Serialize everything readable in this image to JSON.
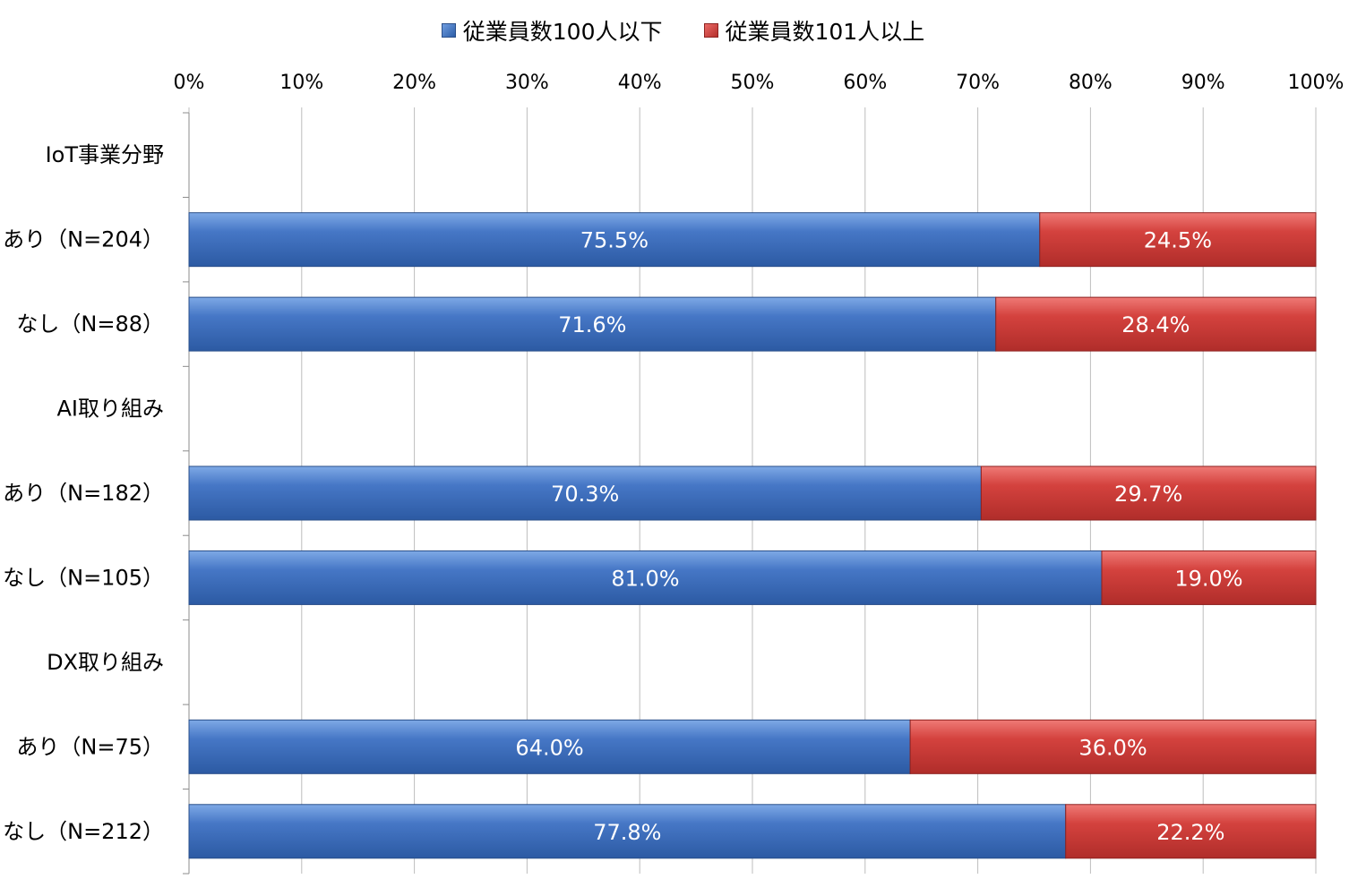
{
  "chart_data": {
    "type": "bar",
    "orientation": "horizontal",
    "stacked": "percent",
    "legend_position": "top",
    "grid": true,
    "xlim": [
      0,
      100
    ],
    "x_ticks": [
      "0%",
      "10%",
      "20%",
      "30%",
      "40%",
      "50%",
      "60%",
      "70%",
      "80%",
      "90%",
      "100%"
    ],
    "series": [
      {
        "name": "従業員数100人以下",
        "color": "#3a6fc0"
      },
      {
        "name": "従業員数101人以上",
        "color": "#d13f3b"
      }
    ],
    "rows": [
      {
        "label": "IoT事業分野",
        "header": true
      },
      {
        "label": "あり（N=204）",
        "values": [
          75.5,
          24.5
        ],
        "labels": [
          "75.5%",
          "24.5%"
        ]
      },
      {
        "label": "なし（N=88）",
        "values": [
          71.6,
          28.4
        ],
        "labels": [
          "71.6%",
          "28.4%"
        ]
      },
      {
        "label": "AI取り組み",
        "header": true
      },
      {
        "label": "あり（N=182）",
        "values": [
          70.3,
          29.7
        ],
        "labels": [
          "70.3%",
          "29.7%"
        ]
      },
      {
        "label": "なし（N=105）",
        "values": [
          81.0,
          19.0
        ],
        "labels": [
          "81.0%",
          "19.0%"
        ]
      },
      {
        "label": "DX取り組み",
        "header": true
      },
      {
        "label": "あり（N=75）",
        "values": [
          64.0,
          36.0
        ],
        "labels": [
          "64.0%",
          "36.0%"
        ]
      },
      {
        "label": "なし（N=212）",
        "values": [
          77.8,
          22.2
        ],
        "labels": [
          "77.8%",
          "22.2%"
        ]
      }
    ]
  }
}
